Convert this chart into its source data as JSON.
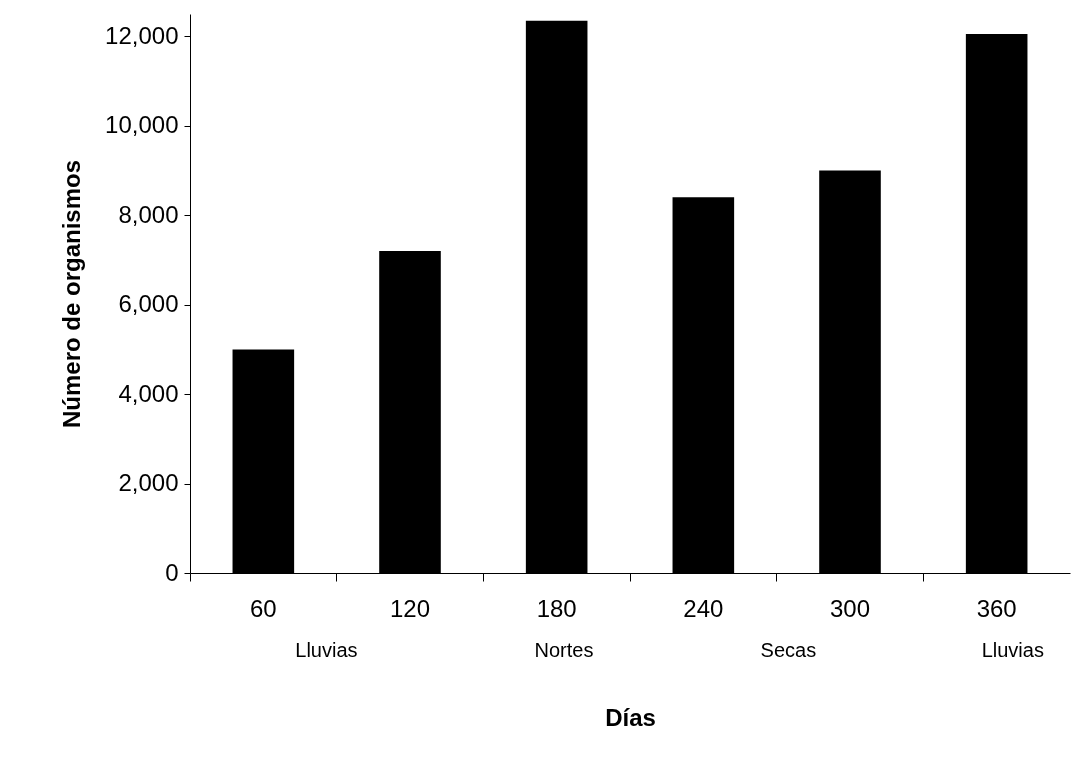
{
  "chart_data": {
    "type": "bar",
    "xlabel": "Días",
    "ylabel": "Número de organismos",
    "categories": [
      "60",
      "120",
      "180",
      "240",
      "300",
      "360"
    ],
    "values": [
      5000,
      7200,
      12350,
      8400,
      9000,
      12050
    ],
    "color": "#000000",
    "ylim": [
      0,
      12500
    ],
    "yticks": [
      0,
      {
        "value": 2000,
        "label": "2,000"
      },
      {
        "value": 4000,
        "label": "4,000"
      },
      {
        "value": 6000,
        "label": "6,000"
      },
      {
        "value": 8000,
        "label": "8,000"
      },
      {
        "value": 10000,
        "label": "10,000"
      },
      {
        "value": 12000,
        "label": "12,000"
      }
    ],
    "grid": false,
    "annotations": [
      "Lluvias",
      "Nortes",
      "Secas",
      "Lluvias"
    ]
  }
}
